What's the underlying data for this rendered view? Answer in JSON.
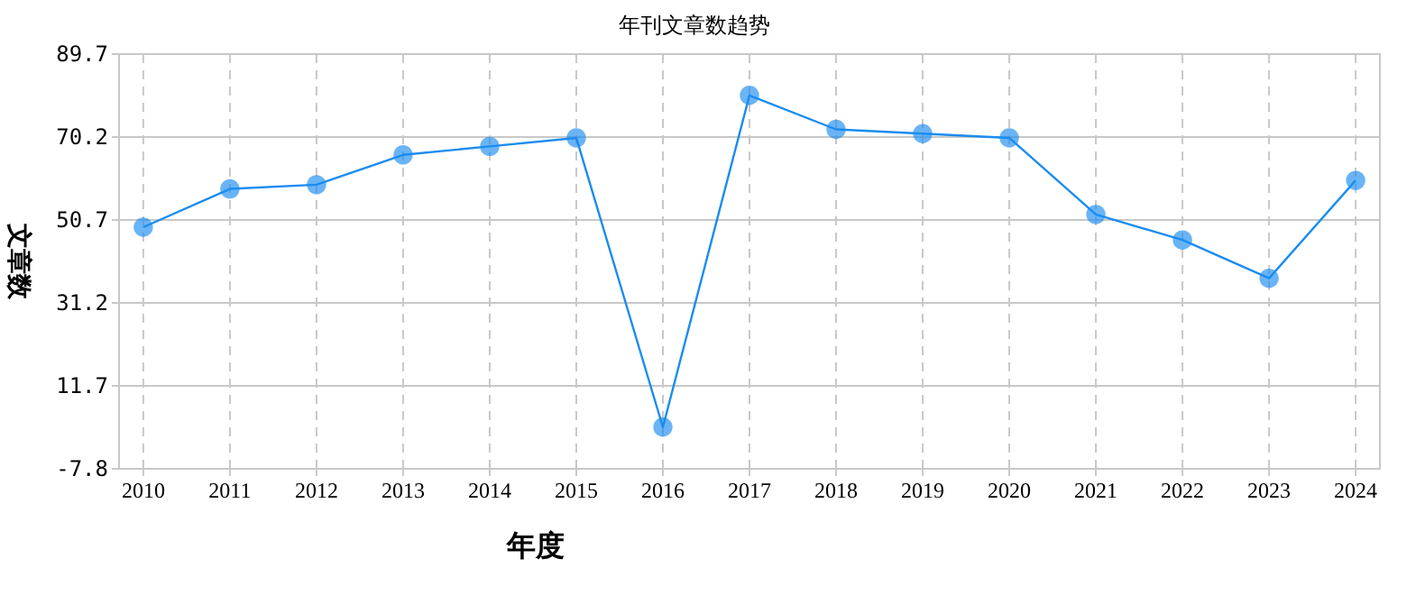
{
  "chart_data": {
    "type": "line",
    "title": "年刊文章数趋势",
    "xlabel": "年度",
    "ylabel": "文章数",
    "categories": [
      "2010",
      "2011",
      "2012",
      "2013",
      "2014",
      "2015",
      "2016",
      "2017",
      "2018",
      "2019",
      "2020",
      "2021",
      "2022",
      "2023",
      "2024"
    ],
    "series": [
      {
        "color": "#1a8cf0",
        "values": [
          49,
          58,
          59,
          66,
          68,
          70,
          2,
          80,
          72,
          71,
          70,
          52,
          46,
          37,
          60
        ]
      }
    ],
    "ylim": [
      -7.8,
      89.7
    ],
    "yticks": [
      -7.8,
      11.7,
      31.2,
      50.7,
      70.2,
      89.7
    ],
    "grid": true,
    "marker": "circle",
    "line_style": "solid"
  }
}
